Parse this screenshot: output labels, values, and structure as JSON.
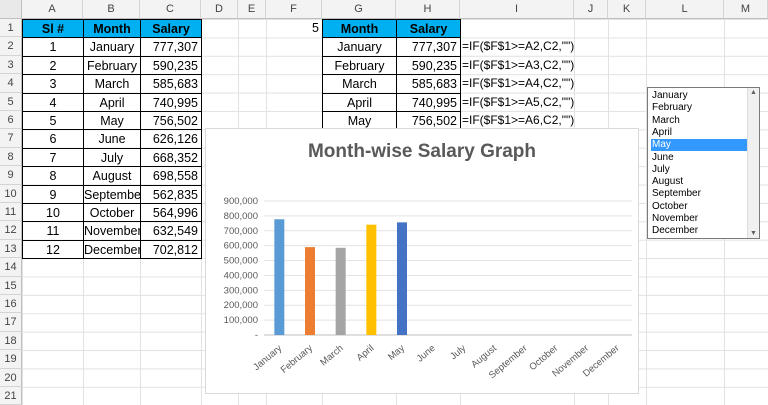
{
  "columns": [
    "A",
    "B",
    "C",
    "D",
    "E",
    "F",
    "G",
    "H",
    "I",
    "J",
    "K",
    "L",
    "M"
  ],
  "rows": [
    "1",
    "2",
    "3",
    "4",
    "5",
    "6",
    "7",
    "8",
    "9",
    "10",
    "11",
    "12",
    "13",
    "14",
    "15",
    "16",
    "17",
    "18",
    "19",
    "20",
    "21"
  ],
  "table": {
    "headers": [
      "Sl #",
      "Month",
      "Salary"
    ],
    "rows": [
      [
        "1",
        "January",
        "777,307"
      ],
      [
        "2",
        "February",
        "590,235"
      ],
      [
        "3",
        "March",
        "585,683"
      ],
      [
        "4",
        "April",
        "740,995"
      ],
      [
        "5",
        "May",
        "756,502"
      ],
      [
        "6",
        "June",
        "626,126"
      ],
      [
        "7",
        "July",
        "668,352"
      ],
      [
        "8",
        "August",
        "698,558"
      ],
      [
        "9",
        "September",
        "562,835"
      ],
      [
        "10",
        "October",
        "564,996"
      ],
      [
        "11",
        "November",
        "632,549"
      ],
      [
        "12",
        "December",
        "702,812"
      ]
    ]
  },
  "f1_value": "5",
  "helper": {
    "headers": [
      "Month",
      "Salary"
    ],
    "rows": [
      [
        "January",
        "777,307",
        "=IF($F$1>=A2,C2,\"\")"
      ],
      [
        "February",
        "590,235",
        "=IF($F$1>=A3,C2,\"\")"
      ],
      [
        "March",
        "585,683",
        "=IF($F$1>=A4,C2,\"\")"
      ],
      [
        "April",
        "740,995",
        "=IF($F$1>=A5,C2,\"\")"
      ],
      [
        "May",
        "756,502",
        "=IF($F$1>=A6,C2,\"\")"
      ]
    ]
  },
  "listbox": {
    "items": [
      "January",
      "February",
      "March",
      "April",
      "May",
      "June",
      "July",
      "August",
      "September",
      "October",
      "November",
      "December"
    ],
    "selected": "May"
  },
  "chart_data": {
    "type": "bar",
    "title": "Month-wise Salary Graph",
    "categories": [
      "January",
      "February",
      "March",
      "April",
      "May",
      "June",
      "July",
      "August",
      "September",
      "October",
      "November",
      "December"
    ],
    "values": [
      777307,
      590235,
      585683,
      740995,
      756502,
      null,
      null,
      null,
      null,
      null,
      null,
      null
    ],
    "colors": [
      "#5b9bd5",
      "#ed7d31",
      "#a5a5a5",
      "#ffc000",
      "#4472c4"
    ],
    "ylim": [
      0,
      900000
    ],
    "yticks": [
      "-",
      "100,000",
      "200,000",
      "300,000",
      "400,000",
      "500,000",
      "600,000",
      "700,000",
      "800,000",
      "900,000"
    ],
    "grid": true,
    "xlabel": "",
    "ylabel": ""
  }
}
